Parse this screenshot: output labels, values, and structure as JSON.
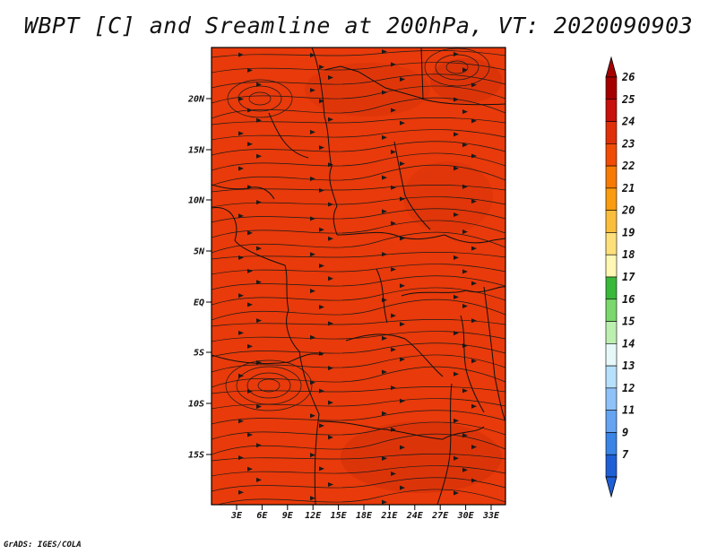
{
  "title": "WBPT [C] and Sreamline at 200hPa, VT: 2020090903",
  "footer": "GrADS: IGES/COLA",
  "map": {
    "field_fill_color": "#e83a0a",
    "streamline_color": "#1a1a1a",
    "border_color": "#111111",
    "lat_ticks": [
      "20N",
      "15N",
      "10N",
      "5N",
      "EQ",
      "5S",
      "10S",
      "15S"
    ],
    "lon_ticks": [
      "3E",
      "6E",
      "9E",
      "12E",
      "15E",
      "18E",
      "21E",
      "24E",
      "27E",
      "30E",
      "33E"
    ]
  },
  "colorbar": {
    "labels": [
      "26",
      "25",
      "24",
      "23",
      "22",
      "21",
      "20",
      "19",
      "18",
      "17",
      "16",
      "15",
      "14",
      "13",
      "12",
      "11",
      "9",
      "7"
    ],
    "colors": [
      "#a50000",
      "#c8100c",
      "#e0300a",
      "#f04c06",
      "#f77a05",
      "#fa9c10",
      "#fbbe3c",
      "#fde07a",
      "#fff7b4",
      "#39b83a",
      "#7ad86c",
      "#bcefb0",
      "#e6f8f8",
      "#b6e0fc",
      "#8ec2f8",
      "#64a4f0",
      "#3a84e6",
      "#1f5fd6"
    ]
  }
}
